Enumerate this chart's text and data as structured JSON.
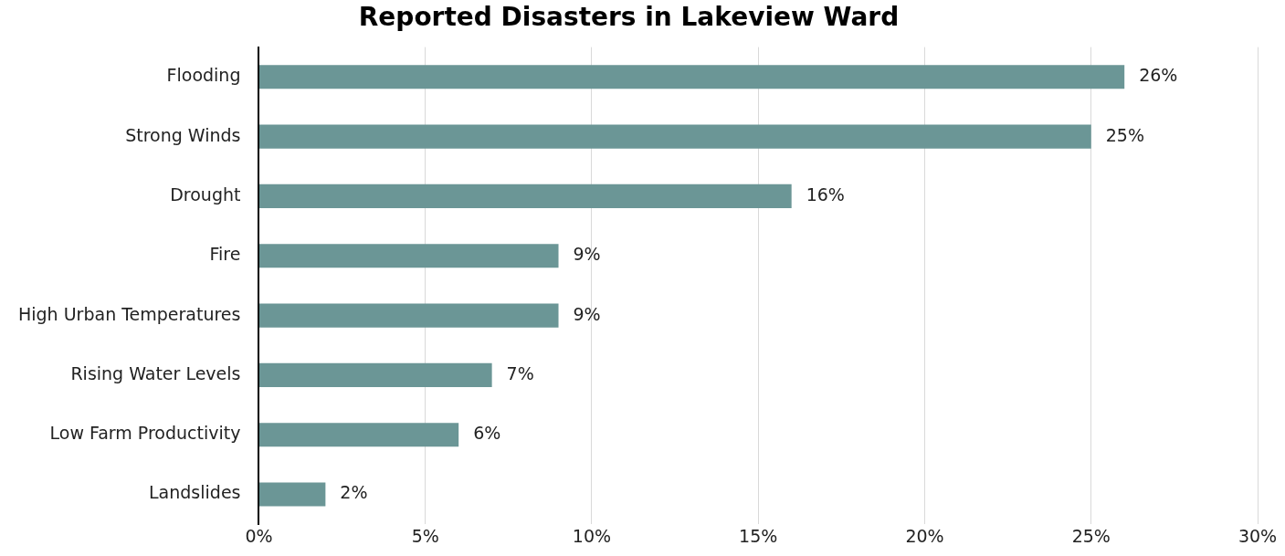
{
  "chart_data": {
    "type": "bar",
    "orientation": "horizontal",
    "title": "Reported Disasters in Lakeview Ward",
    "categories": [
      "Flooding",
      "Strong Winds",
      "Drought",
      "Fire",
      "High Urban Temperatures",
      "Rising Water Levels",
      "Low Farm Productivity",
      "Landslides"
    ],
    "values": [
      26,
      25,
      16,
      9,
      9,
      7,
      6,
      2
    ],
    "value_labels": [
      "26%",
      "25%",
      "16%",
      "9%",
      "9%",
      "7%",
      "6%",
      "2%"
    ],
    "color": "#6b9696",
    "xlim": [
      0,
      30
    ],
    "xticks": [
      {
        "value": 0,
        "label": "0%"
      },
      {
        "value": 5,
        "label": "5%"
      },
      {
        "value": 10,
        "label": "10%"
      },
      {
        "value": 15,
        "label": "15%"
      },
      {
        "value": 20,
        "label": "20%"
      },
      {
        "value": 25,
        "label": "25%"
      },
      {
        "value": 30,
        "label": "30%"
      }
    ],
    "grid": "x",
    "legend": false
  }
}
